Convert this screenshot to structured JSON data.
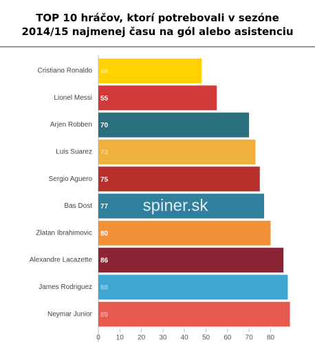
{
  "chart_data": {
    "type": "hbar",
    "title": "TOP 10 hráčov, ktorí potrebovali v sezóne\n2014/15 najmenej času na gól alebo asistenciu",
    "watermark": "spiner.sk",
    "categories": [
      "Cristiano Ronaldo",
      "Lionel Messi",
      "Arjen Robben",
      "Luis Suarez",
      "Sergio Aguero",
      "Bas Dost",
      "Zlatan Ibrahimovic",
      "Alexandre Lacazette",
      "James Rodriguez",
      "Neymar Junior"
    ],
    "values": [
      48,
      55,
      70,
      73,
      75,
      77,
      80,
      86,
      88,
      89
    ],
    "colors": [
      "#ffd200",
      "#d0383a",
      "#2a6f7e",
      "#f0b13c",
      "#b5302a",
      "#2f7f9d",
      "#f0913a",
      "#8b2535",
      "#3fa7d3",
      "#e85a50"
    ],
    "xlim": [
      0,
      90
    ],
    "xticks": [
      0,
      10,
      20,
      30,
      40,
      50,
      60,
      70,
      80
    ]
  }
}
